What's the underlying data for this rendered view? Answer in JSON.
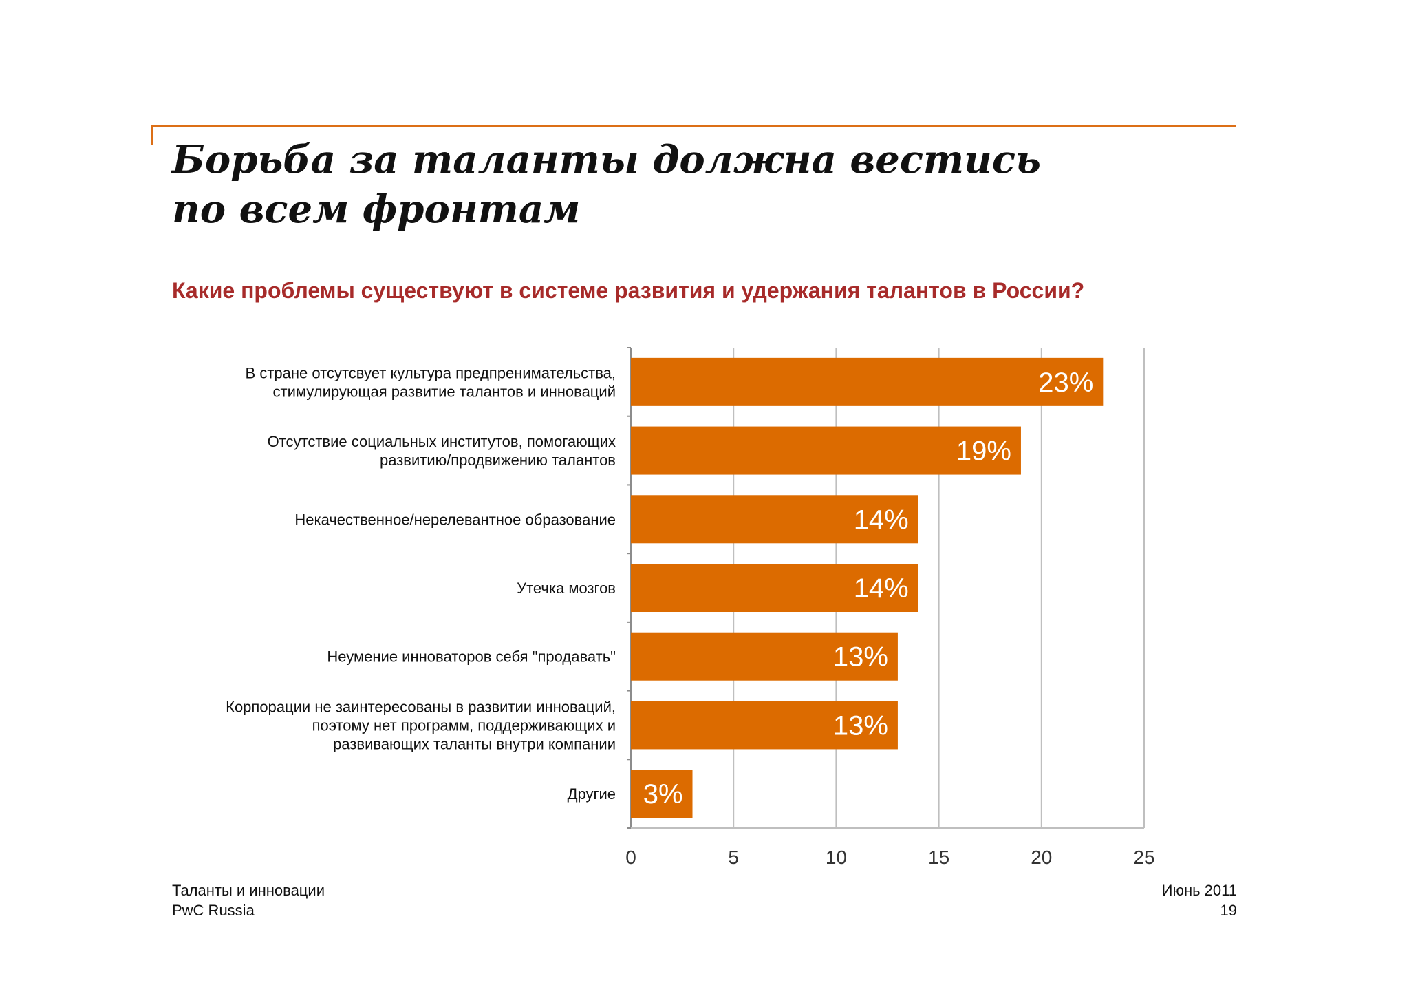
{
  "slide": {
    "title_line1": "Борьба за таланты должна вестись",
    "title_line2": "по всем фронтам",
    "question": "Какие проблемы существуют в системе развития и удержания талантов в России?",
    "accent_color": "#dc6f17",
    "title_color": "#111111",
    "question_color": "#a72b2a"
  },
  "footer": {
    "left_line1": "Таланты и инновации",
    "left_line2": "PwC Russia",
    "right_line1": "Июнь 2011",
    "right_line2": "19"
  },
  "chart_data": {
    "type": "bar",
    "orientation": "horizontal",
    "categories": [
      [
        "В стране отсутсвует культура предпренимательства,",
        "стимулирующая развитие талантов и инноваций"
      ],
      [
        "Отсутствие социальных институтов, помогающих",
        "развитию/продвижению талантов"
      ],
      [
        "Некачественное/нерелевантное образование"
      ],
      [
        "Утечка мозгов"
      ],
      [
        "Неумение инноваторов себя \"продавать\""
      ],
      [
        "Корпорации не заинтересованы в развитии инноваций,",
        "поэтому нет программ, поддерживающих и",
        "развивающих таланты внутри компании"
      ],
      [
        "Другие"
      ]
    ],
    "values": [
      23,
      19,
      14,
      14,
      13,
      13,
      3
    ],
    "data_labels": [
      "23%",
      "19%",
      "14%",
      "14%",
      "13%",
      "13%",
      "3%"
    ],
    "xlim": [
      0,
      25
    ],
    "x_ticks": [
      0,
      5,
      10,
      15,
      20,
      25
    ],
    "x_tick_labels": [
      "0",
      "5",
      "10",
      "15",
      "20",
      "25"
    ],
    "grid": true,
    "bar_color": "#dc6b00",
    "grid_color": "#bfbfbf"
  }
}
